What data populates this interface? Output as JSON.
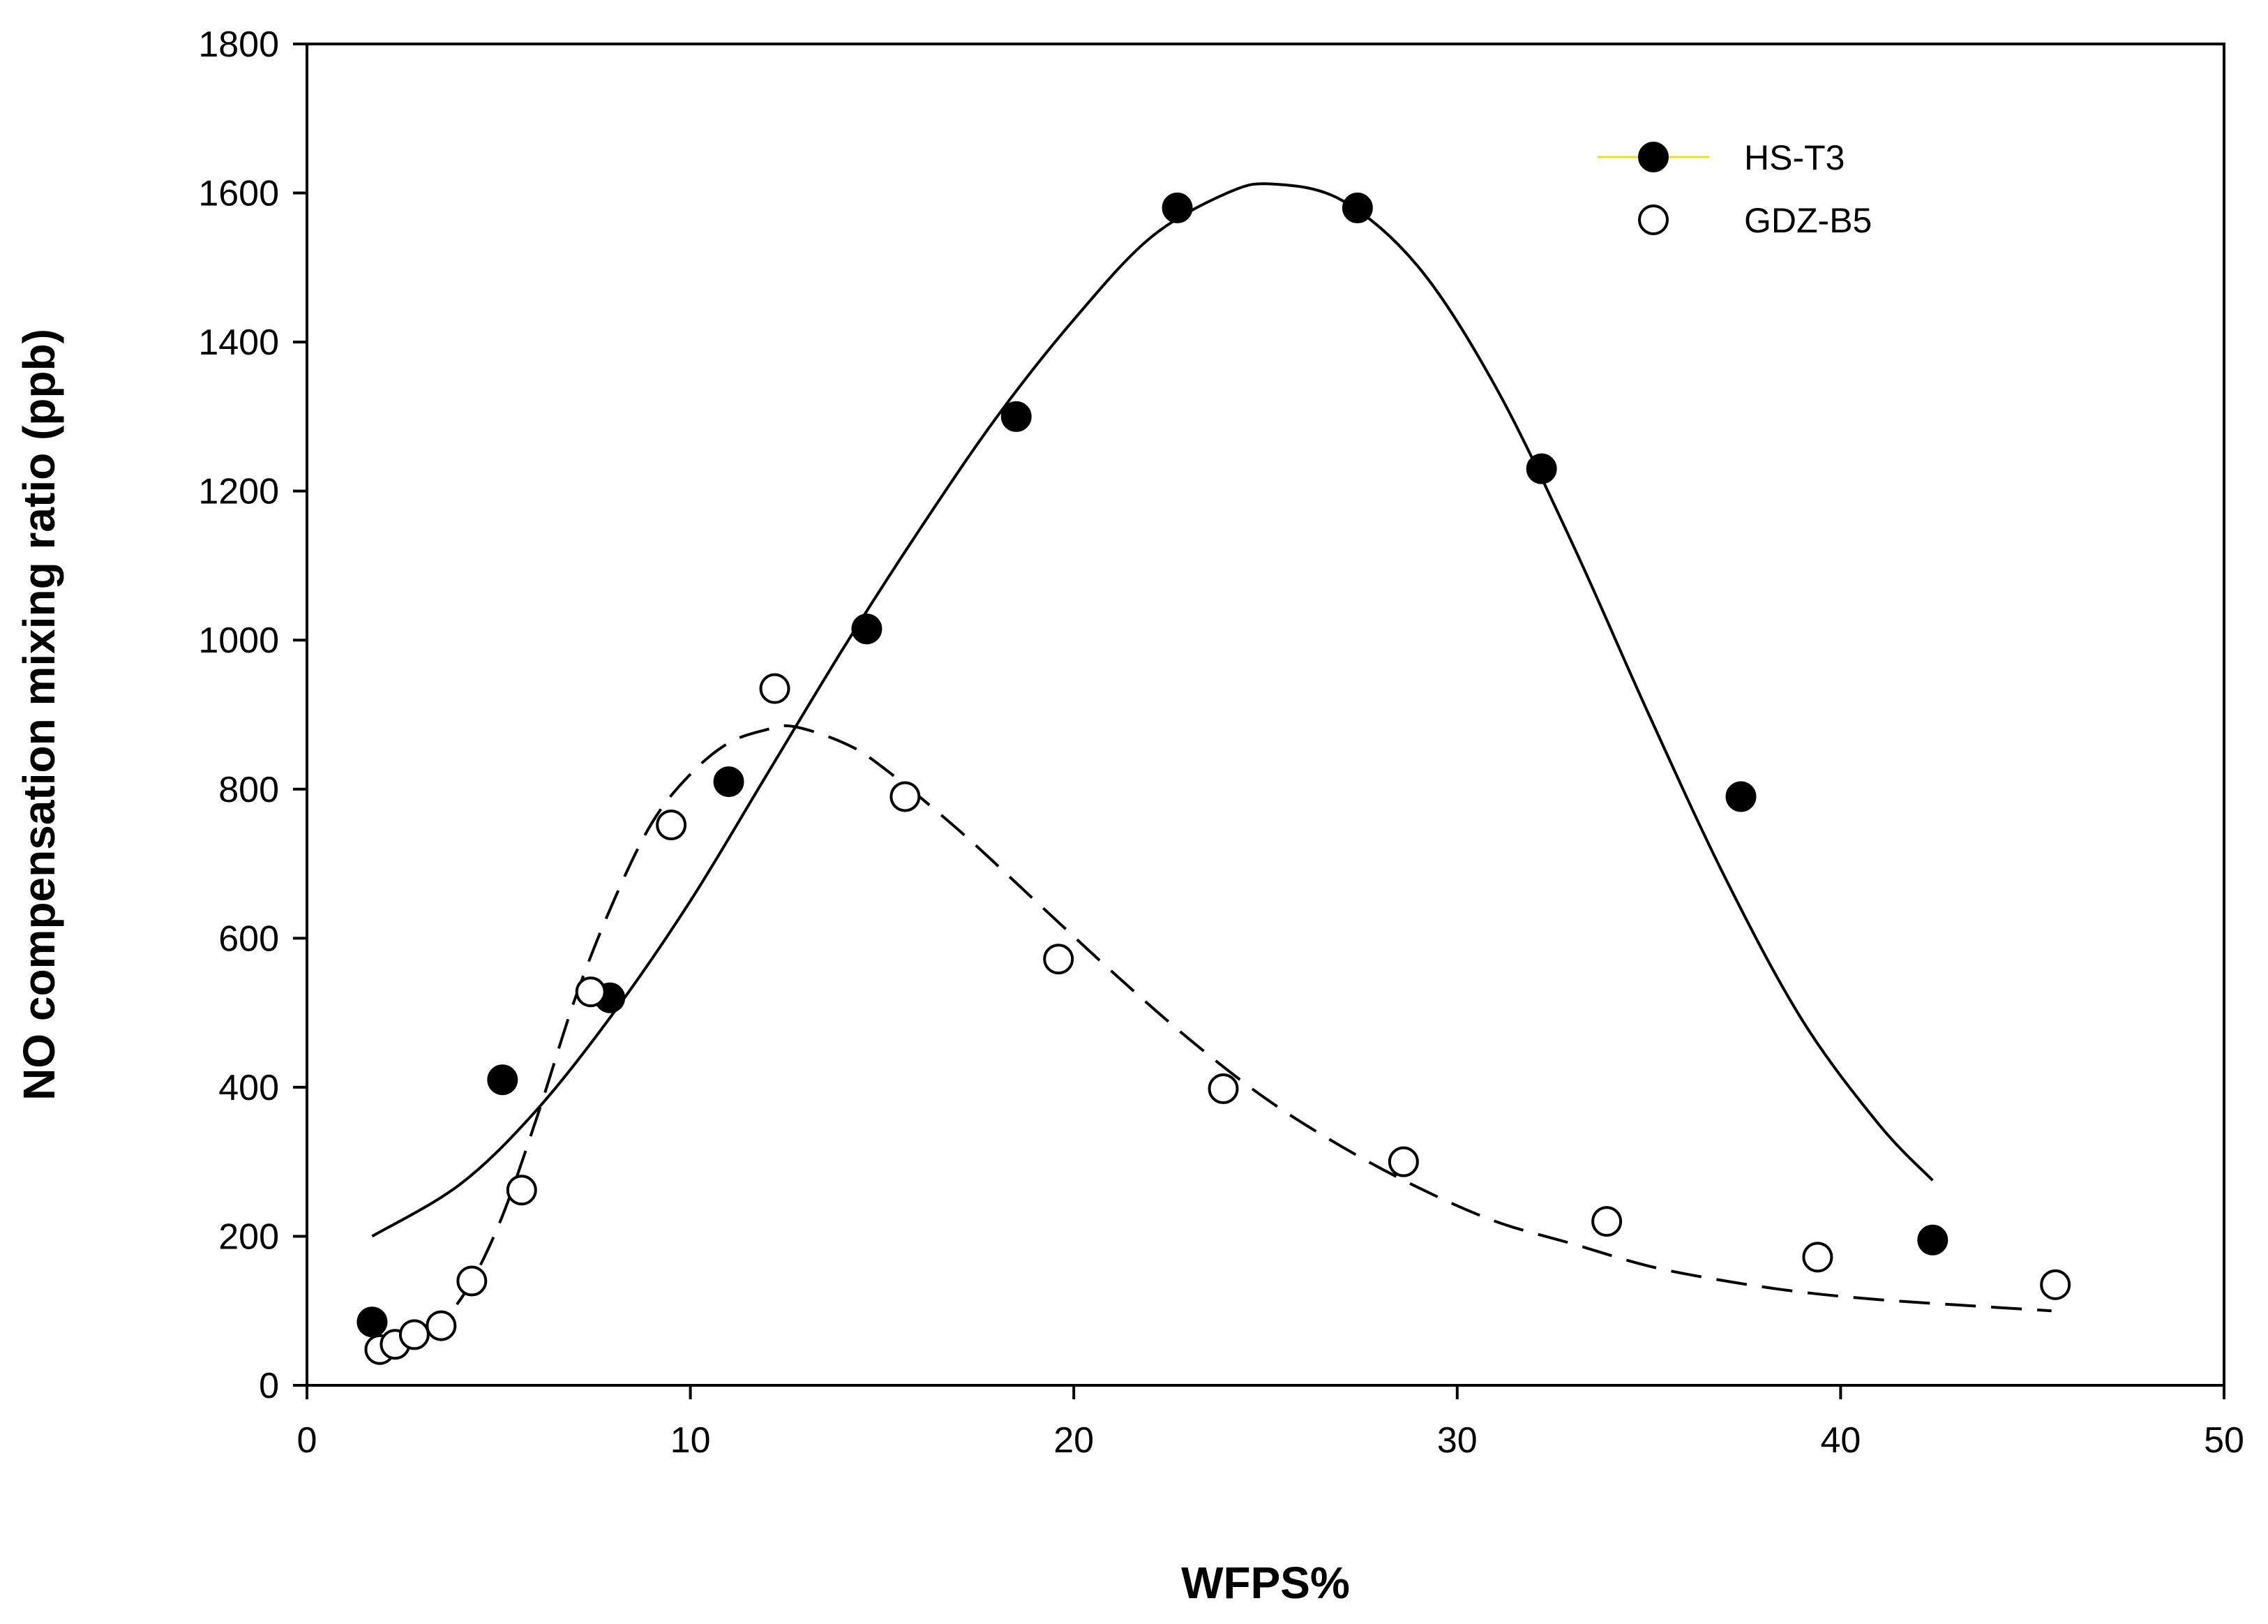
{
  "chart_data": {
    "type": "scatter",
    "title": "",
    "xlabel": "WFPS%",
    "ylabel": "NO compensation mixing ratio (ppb)",
    "xlim": [
      0,
      50
    ],
    "ylim": [
      0,
      1800
    ],
    "x_ticks": [
      0,
      10,
      20,
      30,
      40,
      50
    ],
    "y_ticks": [
      0,
      200,
      400,
      600,
      800,
      1000,
      1200,
      1400,
      1600,
      1800
    ],
    "grid": false,
    "legend_position": "top-right",
    "series": [
      {
        "name": "HS-T3",
        "marker": "filled-circle",
        "line_style": "solid",
        "points": [
          {
            "x": 1.7,
            "y": 85
          },
          {
            "x": 5.1,
            "y": 410
          },
          {
            "x": 7.9,
            "y": 520
          },
          {
            "x": 11.0,
            "y": 810
          },
          {
            "x": 14.6,
            "y": 1015
          },
          {
            "x": 18.5,
            "y": 1300
          },
          {
            "x": 22.7,
            "y": 1580
          },
          {
            "x": 27.4,
            "y": 1580
          },
          {
            "x": 32.2,
            "y": 1230
          },
          {
            "x": 37.4,
            "y": 790
          },
          {
            "x": 42.4,
            "y": 195
          }
        ],
        "fit_curve": [
          {
            "x": 1.7,
            "y": 200
          },
          {
            "x": 4,
            "y": 270
          },
          {
            "x": 6,
            "y": 370
          },
          {
            "x": 8,
            "y": 500
          },
          {
            "x": 10,
            "y": 650
          },
          {
            "x": 12,
            "y": 820
          },
          {
            "x": 14,
            "y": 990
          },
          {
            "x": 16,
            "y": 1150
          },
          {
            "x": 18,
            "y": 1300
          },
          {
            "x": 20,
            "y": 1430
          },
          {
            "x": 22,
            "y": 1540
          },
          {
            "x": 24,
            "y": 1600
          },
          {
            "x": 25.2,
            "y": 1612
          },
          {
            "x": 27,
            "y": 1590
          },
          {
            "x": 29,
            "y": 1500
          },
          {
            "x": 31,
            "y": 1340
          },
          {
            "x": 33,
            "y": 1130
          },
          {
            "x": 35,
            "y": 900
          },
          {
            "x": 37,
            "y": 680
          },
          {
            "x": 39,
            "y": 490
          },
          {
            "x": 41,
            "y": 350
          },
          {
            "x": 42.4,
            "y": 275
          }
        ]
      },
      {
        "name": "GDZ-B5",
        "marker": "open-circle",
        "line_style": "dashed",
        "points": [
          {
            "x": 1.9,
            "y": 48
          },
          {
            "x": 2.3,
            "y": 55
          },
          {
            "x": 2.8,
            "y": 68
          },
          {
            "x": 3.5,
            "y": 80
          },
          {
            "x": 4.3,
            "y": 140
          },
          {
            "x": 5.6,
            "y": 262
          },
          {
            "x": 7.4,
            "y": 528
          },
          {
            "x": 9.5,
            "y": 752
          },
          {
            "x": 12.2,
            "y": 935
          },
          {
            "x": 15.6,
            "y": 790
          },
          {
            "x": 19.6,
            "y": 572
          },
          {
            "x": 23.9,
            "y": 398
          },
          {
            "x": 28.6,
            "y": 300
          },
          {
            "x": 33.9,
            "y": 220
          },
          {
            "x": 39.4,
            "y": 172
          },
          {
            "x": 45.6,
            "y": 135
          }
        ],
        "fit_curve": [
          {
            "x": 1.9,
            "y": 45
          },
          {
            "x": 3,
            "y": 68
          },
          {
            "x": 4,
            "y": 115
          },
          {
            "x": 5,
            "y": 215
          },
          {
            "x": 6,
            "y": 360
          },
          {
            "x": 7,
            "y": 520
          },
          {
            "x": 8,
            "y": 650
          },
          {
            "x": 9,
            "y": 755
          },
          {
            "x": 10,
            "y": 820
          },
          {
            "x": 11,
            "y": 862
          },
          {
            "x": 12,
            "y": 880
          },
          {
            "x": 12.7,
            "y": 884
          },
          {
            "x": 14,
            "y": 862
          },
          {
            "x": 15,
            "y": 830
          },
          {
            "x": 17,
            "y": 745
          },
          {
            "x": 19,
            "y": 650
          },
          {
            "x": 21,
            "y": 555
          },
          {
            "x": 23,
            "y": 465
          },
          {
            "x": 25,
            "y": 385
          },
          {
            "x": 27,
            "y": 320
          },
          {
            "x": 29,
            "y": 265
          },
          {
            "x": 31,
            "y": 220
          },
          {
            "x": 33,
            "y": 190
          },
          {
            "x": 35,
            "y": 160
          },
          {
            "x": 37,
            "y": 140
          },
          {
            "x": 39,
            "y": 125
          },
          {
            "x": 41,
            "y": 115
          },
          {
            "x": 43,
            "y": 108
          },
          {
            "x": 45.5,
            "y": 100
          }
        ]
      }
    ]
  }
}
